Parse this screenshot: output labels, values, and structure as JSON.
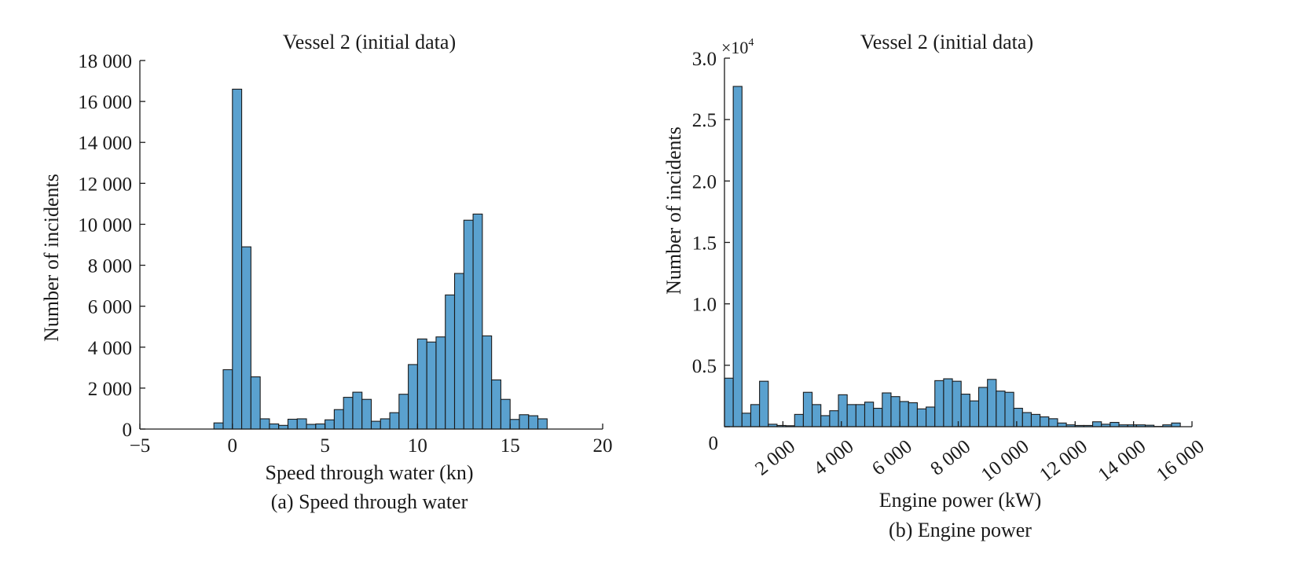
{
  "colors": {
    "bar_fill": "#5aa1cf",
    "axis": "#1a1a1a"
  },
  "chart_data": [
    {
      "id": "a",
      "type": "bar",
      "title": "Vessel 2 (initial data)",
      "xlabel": "Speed through water (kn)",
      "ylabel": "Number of incidents",
      "caption": "(a) Speed through water",
      "xlim": [
        -5,
        20
      ],
      "ylim": [
        0,
        18000
      ],
      "xticks": [
        -5,
        0,
        5,
        10,
        15,
        20
      ],
      "xtick_labels": [
        "−5",
        "0",
        "5",
        "10",
        "15",
        "20"
      ],
      "yticks": [
        0,
        2000,
        4000,
        6000,
        8000,
        10000,
        12000,
        14000,
        16000,
        18000
      ],
      "ytick_labels": [
        "0",
        "2 000",
        "4 000",
        "6 000",
        "8 000",
        "10 000",
        "12 000",
        "14 000",
        "16 000",
        "18 000"
      ],
      "bin_width": 0.5,
      "bin_start": -1,
      "values": [
        300,
        2900,
        16600,
        8900,
        2550,
        500,
        250,
        180,
        480,
        500,
        230,
        250,
        450,
        950,
        1550,
        1800,
        1450,
        380,
        500,
        800,
        1700,
        3150,
        4400,
        4250,
        4500,
        6550,
        7600,
        10200,
        10500,
        4550,
        2400,
        1450,
        470,
        700,
        650,
        500
      ]
    },
    {
      "id": "b",
      "type": "bar",
      "title": "Vessel 2 (initial data)",
      "xlabel": "Engine power (kW)",
      "ylabel": "Number of incidents",
      "caption": "(b) Engine power",
      "exponent_base": "×10",
      "exponent_power": "4",
      "xlim": [
        0,
        16000
      ],
      "ylim": [
        0,
        30000
      ],
      "xticks": [
        2000,
        4000,
        6000,
        8000,
        10000,
        12000,
        14000,
        16000
      ],
      "xtick_labels": [
        "2 000",
        "4 000",
        "6 000",
        "8 000",
        "10 000",
        "12 000",
        "14 000",
        "16 000"
      ],
      "yticks": [
        0,
        5000,
        10000,
        15000,
        20000,
        25000,
        30000
      ],
      "ytick_labels": [
        "0",
        "0.5",
        "1.0",
        "1.5",
        "2.0",
        "2.5",
        "3.0"
      ],
      "bin_width": 300,
      "bin_start": 0,
      "values": [
        3950,
        27700,
        1100,
        1800,
        3700,
        200,
        100,
        80,
        1000,
        2800,
        1800,
        900,
        1300,
        2600,
        1800,
        1800,
        2000,
        1500,
        2750,
        2450,
        2050,
        1950,
        1450,
        1600,
        3750,
        3900,
        3700,
        2650,
        2100,
        3200,
        3850,
        2900,
        2800,
        1500,
        1150,
        1000,
        800,
        650,
        300,
        150,
        100,
        100,
        400,
        200,
        350,
        150,
        150,
        150,
        120,
        20,
        150,
        300
      ]
    }
  ]
}
